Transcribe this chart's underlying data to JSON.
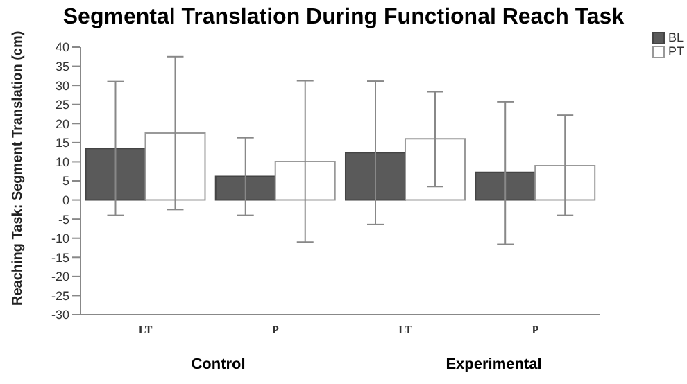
{
  "chart_data": {
    "type": "bar",
    "title": "Segmental Translation During Functional Reach Task",
    "ylabel": "Reaching Task: Segment Translation (cm)",
    "categories": [
      "LT",
      "P",
      "LT",
      "P"
    ],
    "annotations": [
      "Control",
      "Experimental"
    ],
    "series": [
      {
        "name": "BL",
        "color": "#5a5a5a",
        "values": [
          13.5,
          6.2,
          12.4,
          7.2
        ],
        "errors": [
          [
            -4,
            31
          ],
          [
            -4,
            16.3
          ],
          [
            -6.4,
            31.1
          ],
          [
            -11.6,
            25.7
          ]
        ]
      },
      {
        "name": "PT",
        "color": "#ffffff",
        "values": [
          17.5,
          10.1,
          16.0,
          9.0
        ],
        "errors": [
          [
            -2.5,
            37.5
          ],
          [
            -11,
            31.2
          ],
          [
            3.5,
            28.3
          ],
          [
            -4,
            22.2
          ]
        ]
      }
    ],
    "ylim": [
      -30,
      40
    ],
    "yticks": [
      -30,
      -25,
      -20,
      -15,
      -10,
      -5,
      0,
      5,
      10,
      15,
      20,
      25,
      30,
      35,
      40
    ],
    "legend": "top right"
  }
}
